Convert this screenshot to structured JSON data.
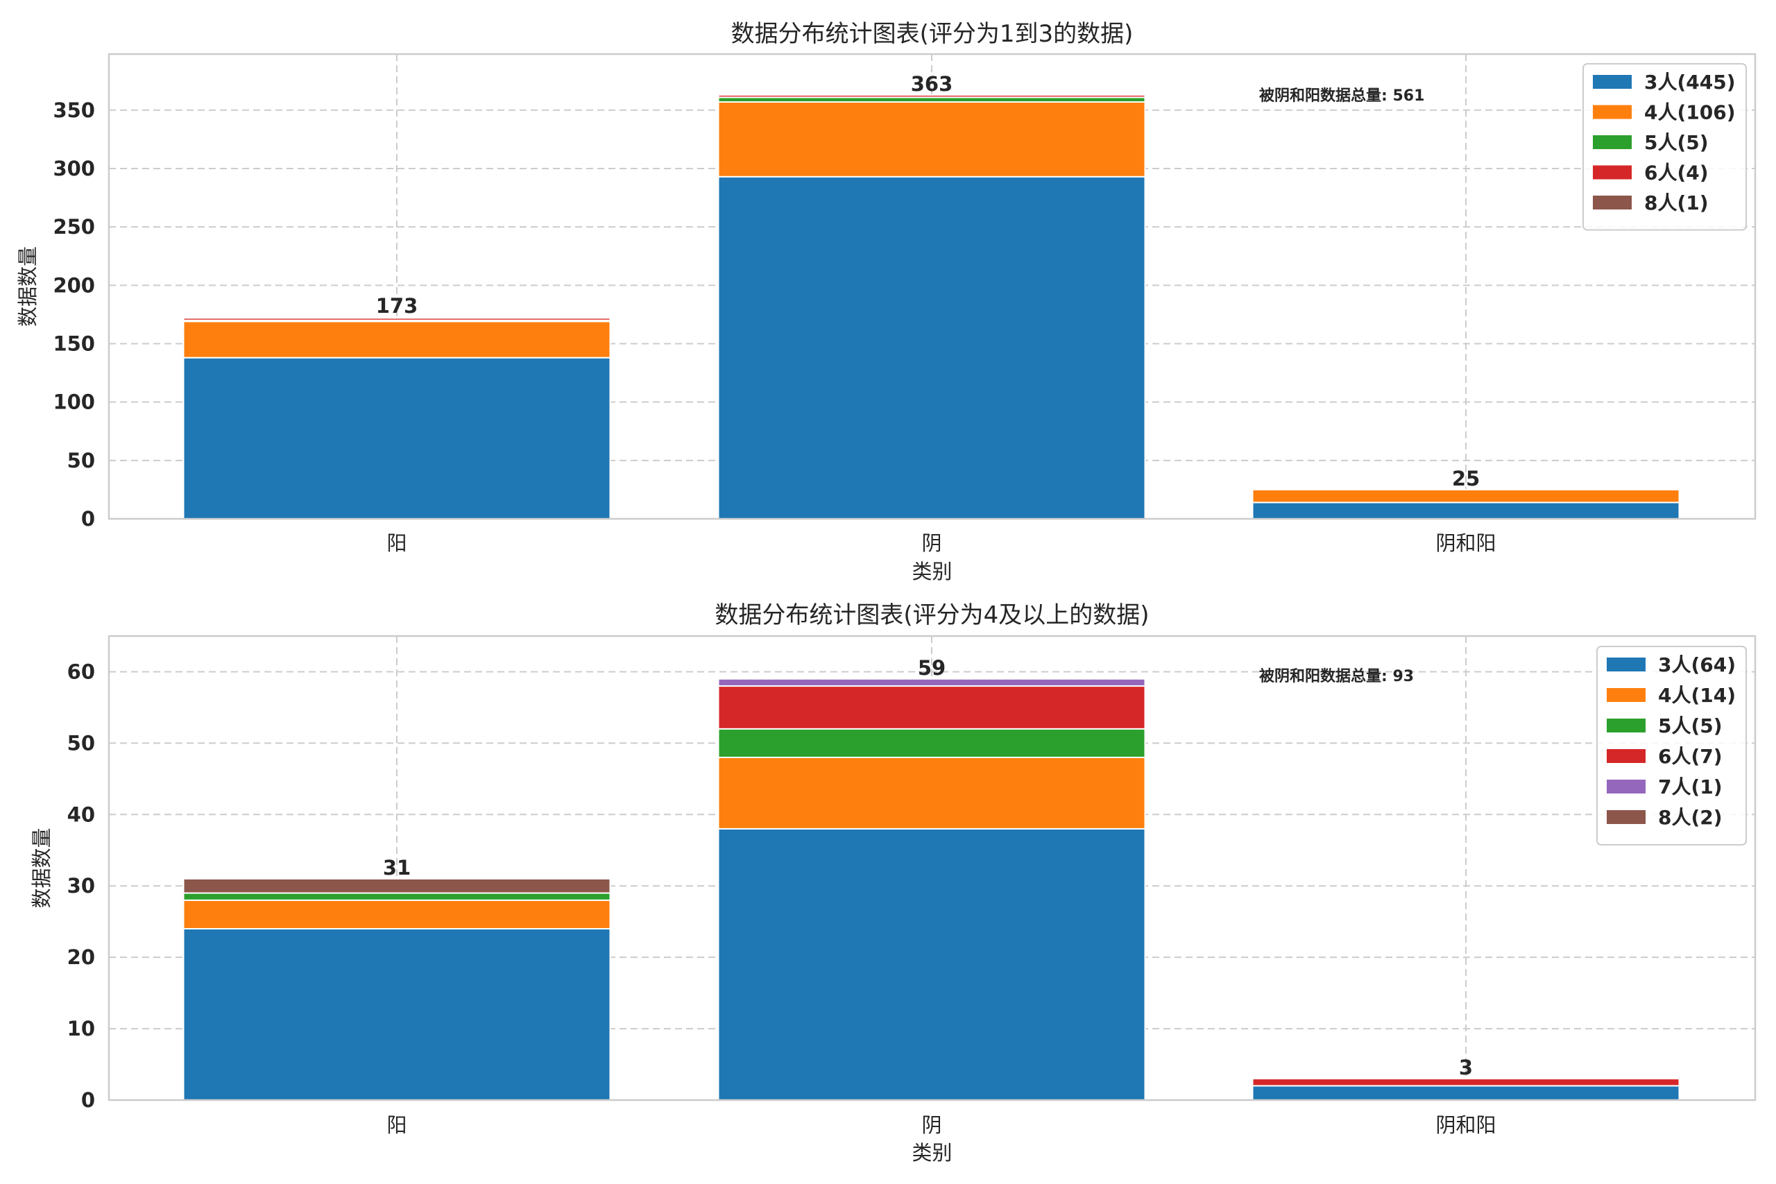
{
  "colors": {
    "3": "#1f77b4",
    "4": "#ff7f0e",
    "5": "#2ca02c",
    "6": "#d62728",
    "7": "#9467bd",
    "8": "#8c564b"
  },
  "chart_data": [
    {
      "type": "bar",
      "stacked": true,
      "title": "数据分布统计图表(评分为1到3的数据)",
      "xlabel": "类别",
      "ylabel": "数据数量",
      "categories": [
        "阳",
        "阴",
        "阴和阳"
      ],
      "ylim": [
        0,
        398
      ],
      "yticks": [
        0,
        50,
        100,
        150,
        200,
        250,
        300,
        350
      ],
      "grid": true,
      "legend_position": "top-right",
      "series": [
        {
          "key": "3",
          "name": "3人(445)",
          "values": [
            138,
            293,
            14
          ]
        },
        {
          "key": "4",
          "name": "4人(106)",
          "values": [
            31,
            64,
            11
          ]
        },
        {
          "key": "5",
          "name": "5人(5)",
          "values": [
            1,
            4,
            0
          ]
        },
        {
          "key": "6",
          "name": "6人(4)",
          "values": [
            2,
            2,
            0
          ]
        },
        {
          "key": "8",
          "name": "8人(1)",
          "values": [
            1,
            0,
            0
          ]
        }
      ],
      "totals": [
        173,
        363,
        25
      ],
      "note": "被阴和阳数据总量: 561"
    },
    {
      "type": "bar",
      "stacked": true,
      "title": "数据分布统计图表(评分为4及以上的数据)",
      "xlabel": "类别",
      "ylabel": "数据数量",
      "categories": [
        "阳",
        "阴",
        "阴和阳"
      ],
      "ylim": [
        0,
        65
      ],
      "yticks": [
        0,
        10,
        20,
        30,
        40,
        50,
        60
      ],
      "grid": true,
      "legend_position": "top-right",
      "series": [
        {
          "key": "3",
          "name": "3人(64)",
          "values": [
            24,
            38,
            2
          ]
        },
        {
          "key": "4",
          "name": "4人(14)",
          "values": [
            4,
            10,
            0
          ]
        },
        {
          "key": "5",
          "name": "5人(5)",
          "values": [
            1,
            4,
            0
          ]
        },
        {
          "key": "6",
          "name": "6人(7)",
          "values": [
            0,
            6,
            1
          ]
        },
        {
          "key": "7",
          "name": "7人(1)",
          "values": [
            0,
            1,
            0
          ]
        },
        {
          "key": "8",
          "name": "8人(2)",
          "values": [
            2,
            0,
            0
          ]
        }
      ],
      "totals": [
        31,
        59,
        3
      ],
      "note": "被阴和阳数据总量: 93"
    }
  ]
}
